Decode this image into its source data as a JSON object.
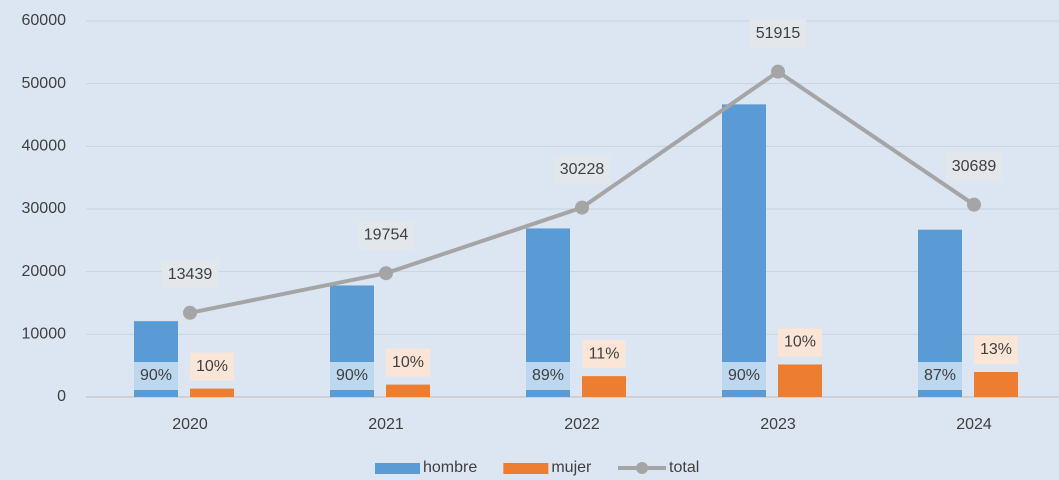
{
  "chart_data": {
    "type": "bar",
    "categories": [
      "2020",
      "2021",
      "2022",
      "2023",
      "2024"
    ],
    "series": [
      {
        "name": "hombre",
        "color": "#5b9bd5",
        "values": [
          12100,
          17800,
          26900,
          46700,
          26700
        ],
        "labels": [
          "90%",
          "90%",
          "89%",
          "90%",
          "87%"
        ]
      },
      {
        "name": "mujer",
        "color": "#ed7d31",
        "values": [
          1340,
          1980,
          3330,
          5190,
          3990
        ],
        "labels": [
          "10%",
          "10%",
          "11%",
          "10%",
          "13%"
        ]
      },
      {
        "name": "total",
        "type": "line",
        "color": "#a5a5a5",
        "values": [
          13439,
          19754,
          30228,
          51915,
          30689
        ]
      }
    ],
    "ylim": [
      0,
      60000
    ],
    "yticks": [
      0,
      10000,
      20000,
      30000,
      40000,
      50000,
      60000
    ],
    "grid": true,
    "legend": "bottom"
  }
}
